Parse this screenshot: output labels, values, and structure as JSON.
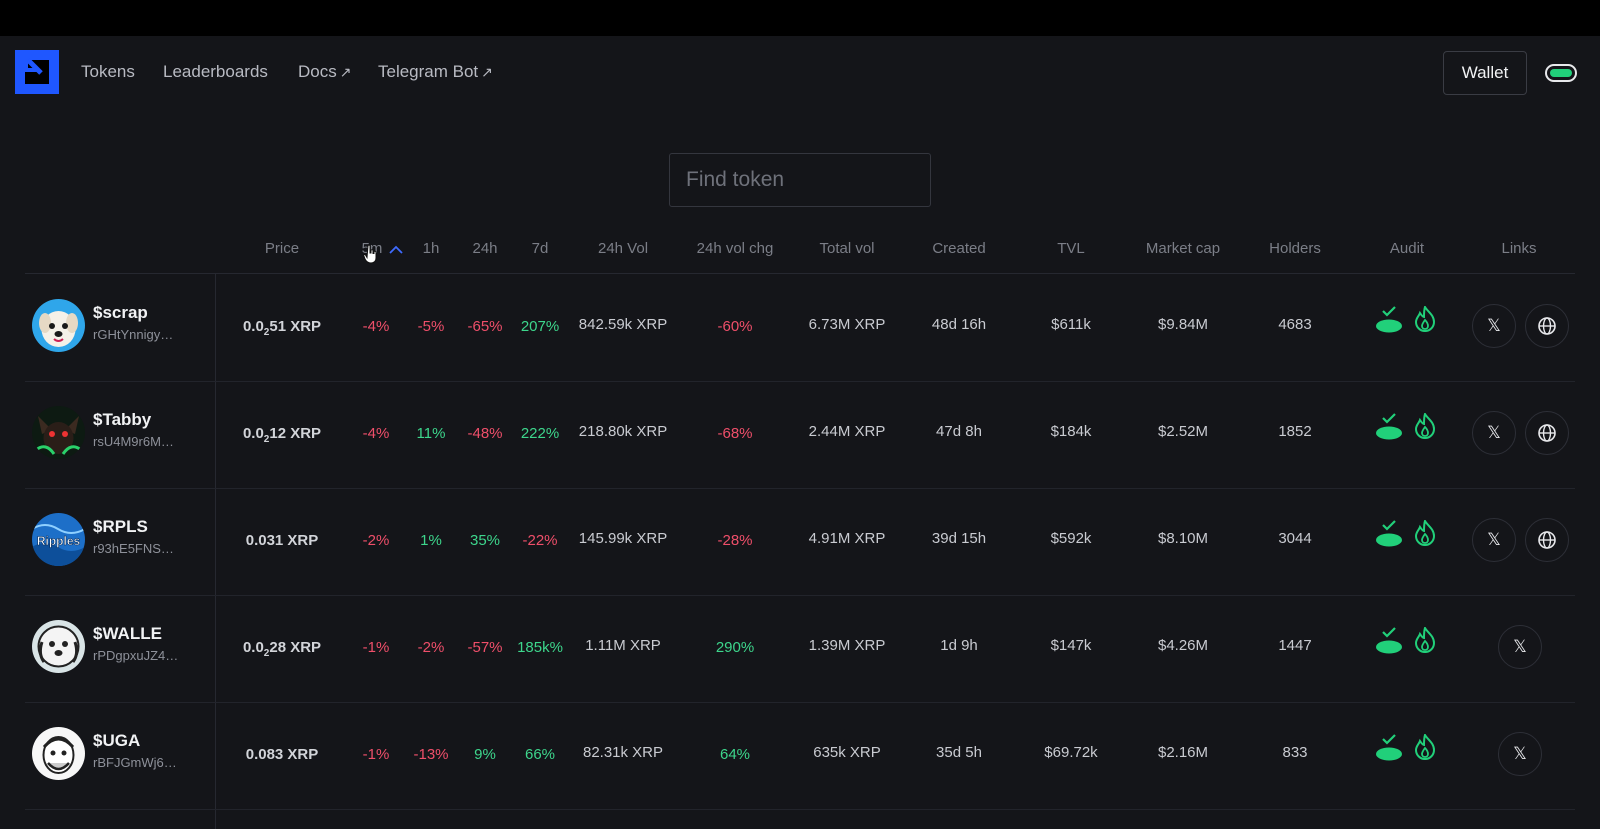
{
  "nav": {
    "links": [
      {
        "label": "Tokens",
        "external": false
      },
      {
        "label": "Leaderboards",
        "external": false
      },
      {
        "label": "Docs",
        "external": true
      },
      {
        "label": "Telegram Bot",
        "external": true
      }
    ],
    "external_arrow": "↗",
    "wallet_label": "Wallet"
  },
  "search": {
    "placeholder": "Find token"
  },
  "table": {
    "columns": [
      "Price",
      "5m",
      "1h",
      "24h",
      "7d",
      "24h Vol",
      "24h vol chg",
      "Total vol",
      "Created",
      "TVL",
      "Market cap",
      "Holders",
      "Audit",
      "Links"
    ],
    "sorted_by": "5m",
    "sort_direction": "ascending",
    "rows": [
      {
        "symbol": "$scrap",
        "address": "rGHtYnnigy…",
        "price": {
          "lead": "0.0",
          "zeros": "2",
          "tail": "51 XRP"
        },
        "m5": "-4%",
        "h1": "-5%",
        "h24": "-65%",
        "d7": "207%",
        "vol24h": "842.59k XRP",
        "volchg": "-60%",
        "totalvol": "6.73M XRP",
        "created": "48d 16h",
        "tvl": "$611k",
        "mcap": "$9.84M",
        "holders": "4683",
        "links": [
          "x",
          "web"
        ]
      },
      {
        "symbol": "$Tabby",
        "address": "rsU4M9r6M…",
        "price": {
          "lead": "0.0",
          "zeros": "2",
          "tail": "12 XRP"
        },
        "m5": "-4%",
        "h1": "11%",
        "h24": "-48%",
        "d7": "222%",
        "vol24h": "218.80k XRP",
        "volchg": "-68%",
        "totalvol": "2.44M XRP",
        "created": "47d 8h",
        "tvl": "$184k",
        "mcap": "$2.52M",
        "holders": "1852",
        "links": [
          "x",
          "web"
        ]
      },
      {
        "symbol": "$RPLS",
        "address": "r93hE5FNS…",
        "price": {
          "lead": "0.031 XRP",
          "zeros": "",
          "tail": ""
        },
        "m5": "-2%",
        "h1": "1%",
        "h24": "35%",
        "d7": "-22%",
        "vol24h": "145.99k XRP",
        "volchg": "-28%",
        "totalvol": "4.91M XRP",
        "created": "39d 15h",
        "tvl": "$592k",
        "mcap": "$8.10M",
        "holders": "3044",
        "links": [
          "x",
          "web"
        ]
      },
      {
        "symbol": "$WALLE",
        "address": "rPDgpxuJZ4…",
        "price": {
          "lead": "0.0",
          "zeros": "2",
          "tail": "28 XRP"
        },
        "m5": "-1%",
        "h1": "-2%",
        "h24": "-57%",
        "d7": "185k%",
        "vol24h": "1.11M XRP",
        "volchg": "290%",
        "totalvol": "1.39M XRP",
        "created": "1d 9h",
        "tvl": "$147k",
        "mcap": "$4.26M",
        "holders": "1447",
        "links": [
          "x"
        ]
      },
      {
        "symbol": "$UGA",
        "address": "rBFJGmWj6…",
        "price": {
          "lead": "0.083 XRP",
          "zeros": "",
          "tail": ""
        },
        "m5": "-1%",
        "h1": "-13%",
        "h24": "9%",
        "d7": "66%",
        "vol24h": "82.31k XRP",
        "volchg": "64%",
        "totalvol": "635k XRP",
        "created": "35d 5h",
        "tvl": "$69.72k",
        "mcap": "$2.16M",
        "holders": "833",
        "links": [
          "x"
        ]
      }
    ]
  },
  "avatars": {
    "ripples_text": "Ripples"
  },
  "icons": {
    "x_glyph": "𝕏",
    "audit": [
      "shield-check-icon",
      "fire-icon"
    ]
  },
  "colors": {
    "background": "#141519",
    "brand": "#1f57ff",
    "negative": "#ef4f6a",
    "positive": "#3dd68c",
    "audit_green": "#21d07a"
  }
}
